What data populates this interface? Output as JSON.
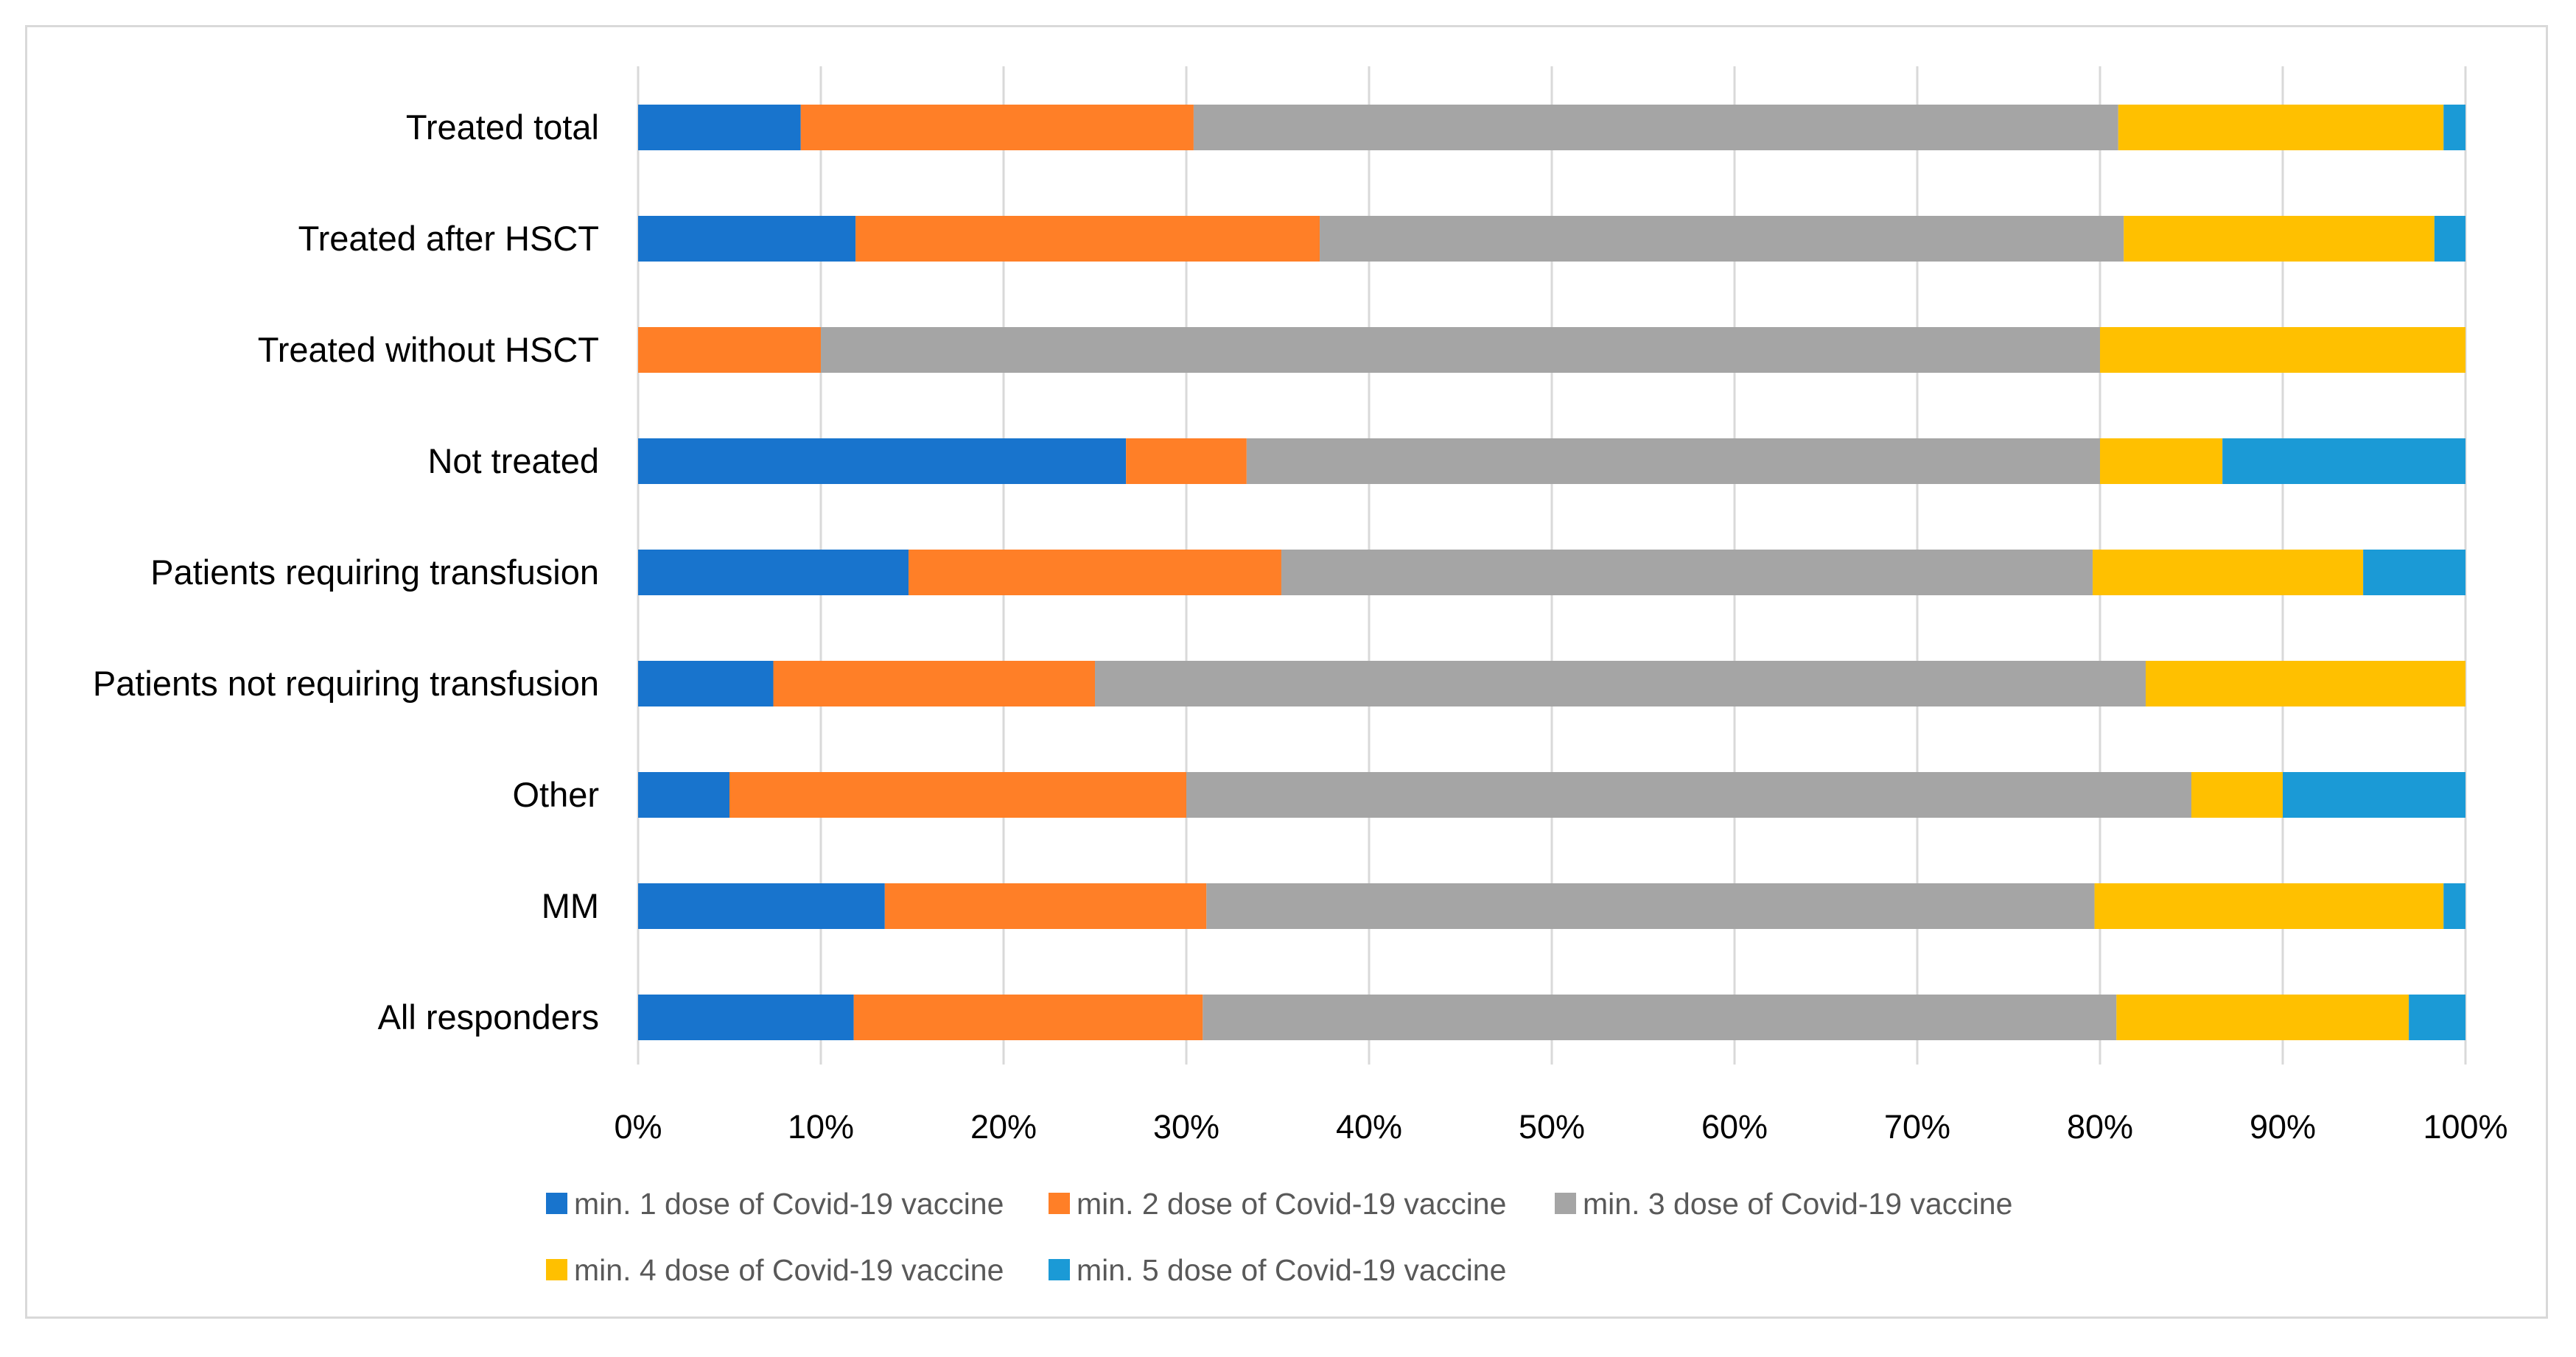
{
  "chart_data": {
    "type": "bar",
    "orientation": "horizontal",
    "stacked": "percent",
    "title": "",
    "xlabel": "",
    "ylabel": "",
    "xlim": [
      0,
      100
    ],
    "grid": true,
    "legend_position": "bottom",
    "categories": [
      "Treated total",
      "Treated after HSCT",
      "Treated without HSCT",
      "Not treated",
      "Patients requiring transfusion",
      "Patients not requiring transfusion",
      "Other",
      "MM",
      "All responders"
    ],
    "x_ticks": [
      "0%",
      "10%",
      "20%",
      "30%",
      "40%",
      "50%",
      "60%",
      "70%",
      "80%",
      "90%",
      "100%"
    ],
    "series": [
      {
        "name": "min. 1 dose of Covid-19 vaccine",
        "color": "#1874CD",
        "values": [
          8.9,
          11.9,
          0,
          26.7,
          14.8,
          7.4,
          5.0,
          13.5,
          11.8
        ]
      },
      {
        "name": "min. 2 dose of Covid-19 vaccine",
        "color": "#FF7F27",
        "values": [
          21.5,
          25.4,
          10.0,
          6.6,
          20.4,
          17.6,
          25.0,
          17.6,
          19.1
        ]
      },
      {
        "name": "min. 3 dose of Covid-19 vaccine",
        "color": "#A5A5A5",
        "values": [
          50.6,
          44.0,
          70.0,
          46.7,
          44.4,
          57.5,
          55.0,
          48.6,
          50.0
        ]
      },
      {
        "name": "min. 4 dose of Covid-19 vaccine",
        "color": "#FFC000",
        "values": [
          17.8,
          17.0,
          20.0,
          6.7,
          14.8,
          17.5,
          5.0,
          19.1,
          16.0
        ]
      },
      {
        "name": "min. 5 dose of Covid-19 vaccine",
        "color": "#1B9AD6",
        "values": [
          1.2,
          1.7,
          0,
          13.3,
          5.6,
          0,
          10.0,
          1.2,
          3.1
        ]
      }
    ]
  }
}
